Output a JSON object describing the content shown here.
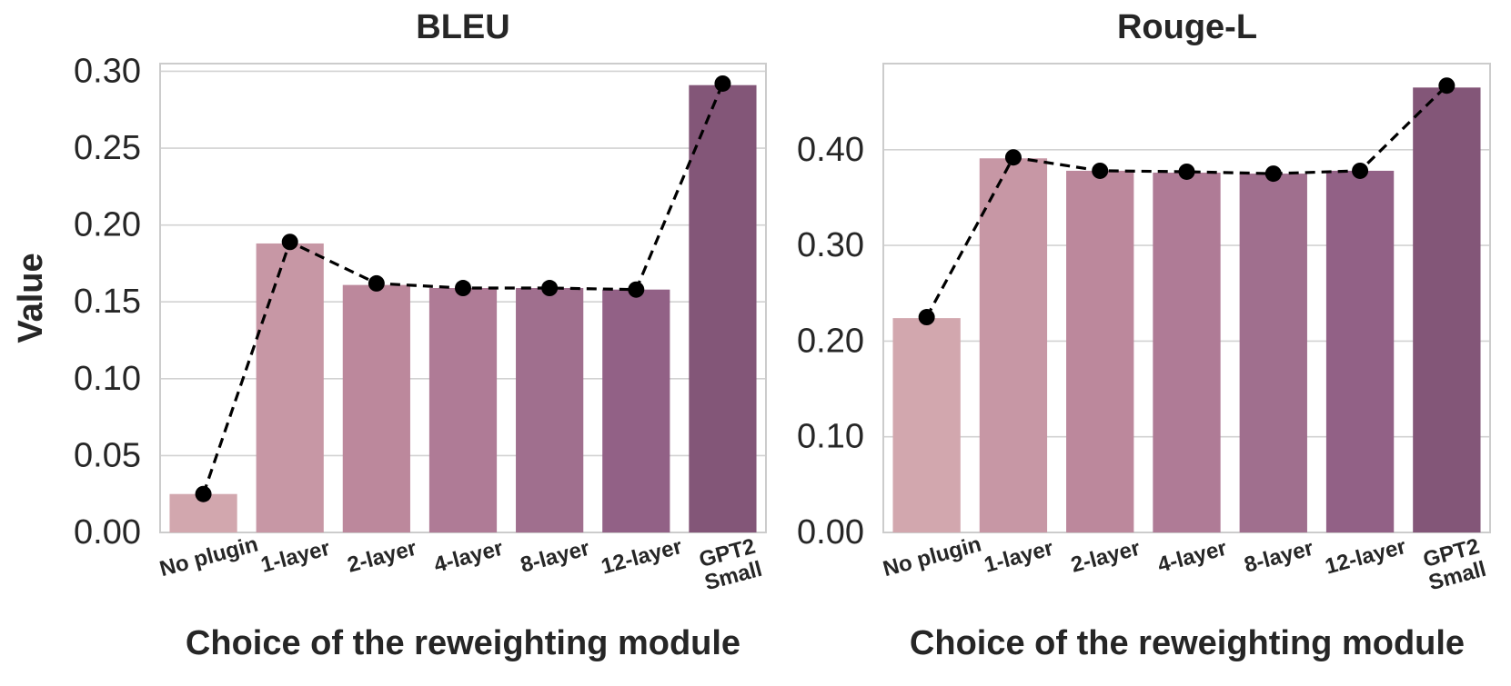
{
  "chart_data": [
    {
      "type": "bar",
      "title": "BLEU",
      "xlabel": "Choice of the reweighting module",
      "ylabel": "Value",
      "categories": [
        "No plugin",
        "1-layer",
        "2-layer",
        "4-layer",
        "8-layer",
        "12-layer",
        "GPT2 Small"
      ],
      "values": [
        0.025,
        0.188,
        0.161,
        0.159,
        0.159,
        0.158,
        0.291
      ],
      "line_values": [
        0.025,
        0.189,
        0.162,
        0.159,
        0.159,
        0.158,
        0.292
      ],
      "ylim": [
        0,
        0.305
      ],
      "yticks": [
        0.0,
        0.05,
        0.1,
        0.15,
        0.2,
        0.25,
        0.3
      ],
      "ytick_labels": [
        "0.00",
        "0.05",
        "0.10",
        "0.15",
        "0.20",
        "0.25",
        "0.30"
      ],
      "grid": true
    },
    {
      "type": "bar",
      "title": "Rouge-L",
      "xlabel": "Choice of the reweighting module",
      "ylabel": "",
      "categories": [
        "No plugin",
        "1-layer",
        "2-layer",
        "4-layer",
        "8-layer",
        "12-layer",
        "GPT2 Small"
      ],
      "values": [
        0.224,
        0.391,
        0.378,
        0.376,
        0.375,
        0.378,
        0.465
      ],
      "line_values": [
        0.225,
        0.392,
        0.378,
        0.377,
        0.375,
        0.378,
        0.467
      ],
      "ylim": [
        0,
        0.49
      ],
      "yticks": [
        0.0,
        0.1,
        0.2,
        0.3,
        0.4
      ],
      "ytick_labels": [
        "0.00",
        "0.10",
        "0.20",
        "0.30",
        "0.40"
      ],
      "grid": true
    }
  ],
  "colors": {
    "bars": [
      "#d2a7ae",
      "#c797a5",
      "#bc889c",
      "#af7b96",
      "#a06f8e",
      "#926186",
      "#835678"
    ],
    "line": "#000000",
    "grid": "#d2d2d2",
    "frame": "#cccccc",
    "text": "#262626"
  }
}
